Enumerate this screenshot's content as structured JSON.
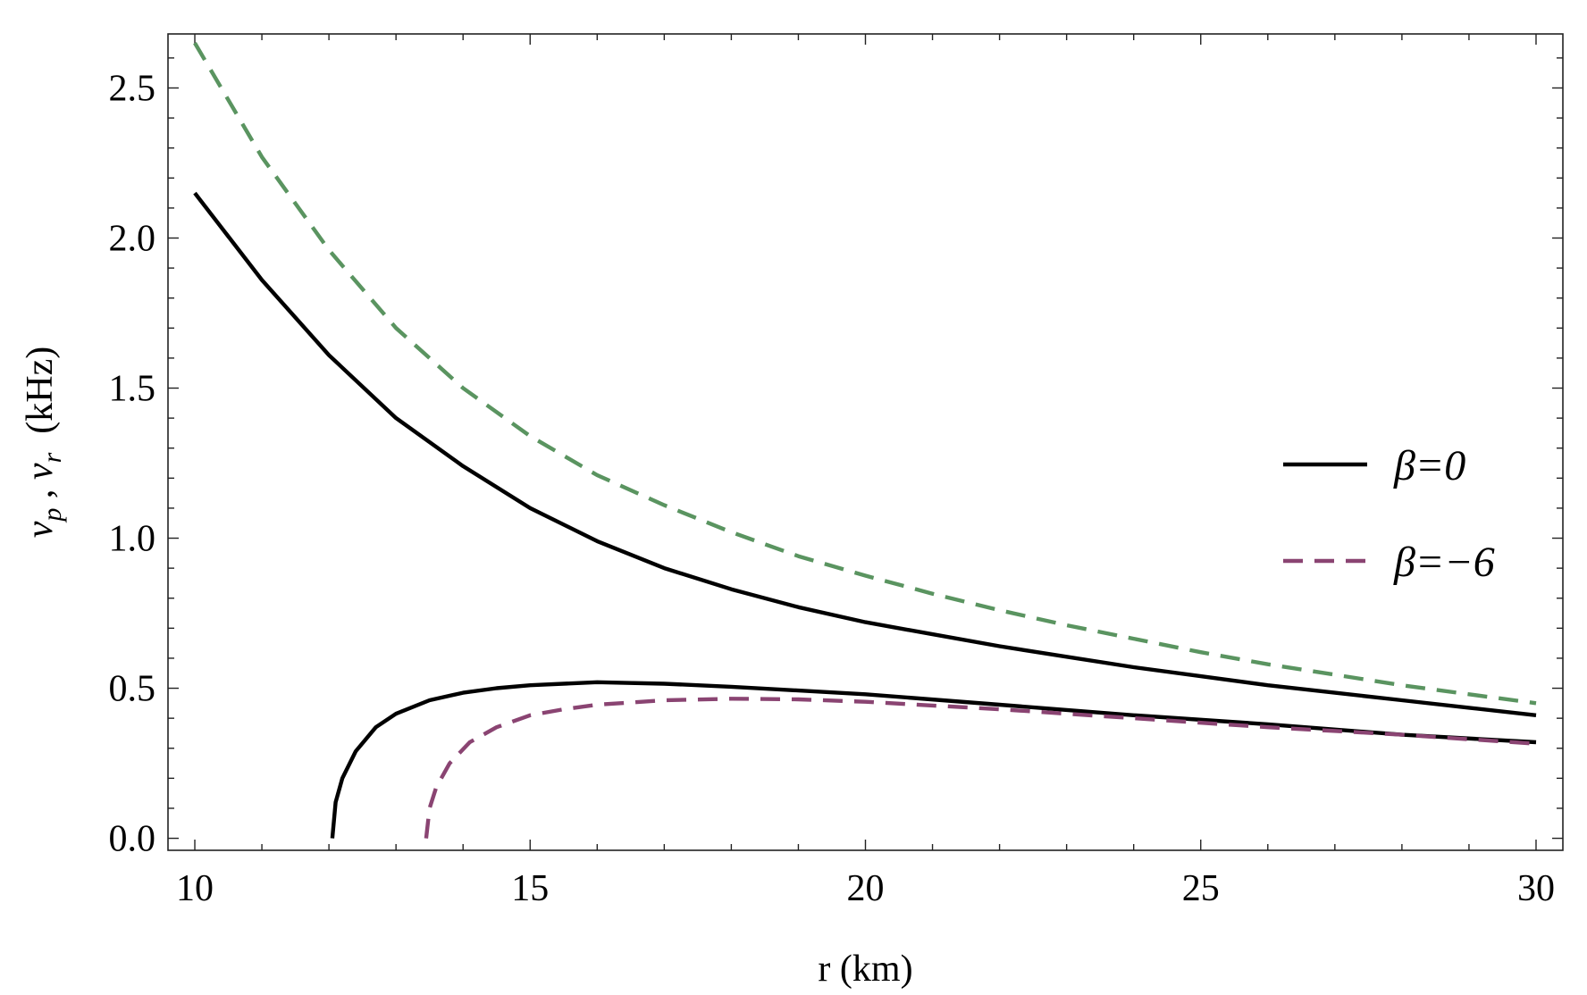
{
  "chart_data": {
    "type": "line",
    "xlabel": "r  (km)",
    "ylabel_parts": [
      "v",
      "p",
      " , ",
      "v",
      "r",
      "  (kHz)"
    ],
    "xlim": [
      9.6,
      30.4
    ],
    "ylim": [
      -0.04,
      2.68
    ],
    "x_ticks": [
      10,
      15,
      20,
      25,
      30
    ],
    "x_tick_labels": [
      "10",
      "15",
      "20",
      "25",
      "30"
    ],
    "y_ticks": [
      0.0,
      0.5,
      1.0,
      1.5,
      2.0,
      2.5
    ],
    "y_tick_labels": [
      "0.0",
      "0.5",
      "1.0",
      "1.5",
      "2.0",
      "2.5"
    ],
    "x_minor_step": 1,
    "y_minor_step": 0.1,
    "grid": false,
    "legend_position": "right",
    "legend": [
      {
        "label": "β=0",
        "color": "#000000",
        "dash": "solid"
      },
      {
        "label": "β=−6",
        "color": "#8a4472",
        "dash": "dashed"
      }
    ],
    "series": [
      {
        "color": "#000000",
        "dash": "solid",
        "x": [
          10,
          11,
          12,
          13,
          14,
          15,
          16,
          17,
          18,
          19,
          20,
          21,
          22,
          23,
          24,
          25,
          26,
          27,
          28,
          29,
          30
        ],
        "y": [
          2.15,
          1.86,
          1.61,
          1.4,
          1.24,
          1.1,
          0.99,
          0.9,
          0.83,
          0.77,
          0.72,
          0.68,
          0.64,
          0.605,
          0.57,
          0.54,
          0.51,
          0.485,
          0.46,
          0.435,
          0.41
        ]
      },
      {
        "color": "#5a9460",
        "dash": "dashed",
        "x": [
          10,
          11,
          12,
          13,
          14,
          15,
          16,
          17,
          18,
          19,
          20,
          21,
          22,
          23,
          24,
          25,
          26,
          27,
          28,
          29,
          30
        ],
        "y": [
          2.65,
          2.27,
          1.96,
          1.7,
          1.5,
          1.34,
          1.21,
          1.11,
          1.02,
          0.94,
          0.875,
          0.815,
          0.76,
          0.71,
          0.665,
          0.62,
          0.58,
          0.545,
          0.51,
          0.48,
          0.45
        ]
      },
      {
        "color": "#000000",
        "dash": "solid",
        "x": [
          12.05,
          12.1,
          12.2,
          12.4,
          12.7,
          13.0,
          13.5,
          14.0,
          14.5,
          15.0,
          16.0,
          17.0,
          18.0,
          20.0,
          22.0,
          24.0,
          26.0,
          28.0,
          30.0
        ],
        "y": [
          0.0,
          0.12,
          0.2,
          0.29,
          0.37,
          0.415,
          0.46,
          0.485,
          0.5,
          0.51,
          0.52,
          0.515,
          0.505,
          0.48,
          0.445,
          0.41,
          0.38,
          0.345,
          0.32
        ]
      },
      {
        "color": "#8a4472",
        "dash": "dashed",
        "x": [
          13.45,
          13.5,
          13.6,
          13.8,
          14.1,
          14.5,
          15.0,
          15.5,
          16.0,
          17.0,
          18.0,
          19.0,
          20.0,
          22.0,
          24.0,
          26.0,
          28.0,
          30.0
        ],
        "y": [
          0.0,
          0.1,
          0.17,
          0.25,
          0.32,
          0.37,
          0.41,
          0.43,
          0.445,
          0.46,
          0.465,
          0.463,
          0.455,
          0.43,
          0.4,
          0.37,
          0.345,
          0.315
        ]
      }
    ]
  }
}
